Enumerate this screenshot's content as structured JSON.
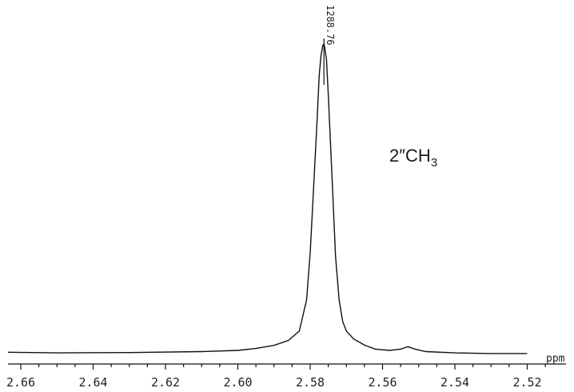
{
  "chart_data": {
    "type": "line",
    "title": "",
    "xlabel": "ppm",
    "ylabel": "",
    "x_reversed": true,
    "xlim": [
      2.67,
      2.52
    ],
    "x_ticks": [
      2.66,
      2.64,
      2.62,
      2.6,
      2.58,
      2.56,
      2.54,
      2.52
    ],
    "x_tick_labels": [
      "2.66",
      "2.64",
      "2.62",
      "2.60",
      "2.58",
      "2.56",
      "2.54",
      "2.52"
    ],
    "grid": false,
    "series": [
      {
        "x": [
          2.67,
          2.65,
          2.63,
          2.61,
          2.6,
          2.595,
          2.59,
          2.586,
          2.583,
          2.581,
          2.58,
          2.579,
          2.578,
          2.5775,
          2.577,
          2.5765,
          2.5762,
          2.576,
          2.5755,
          2.575,
          2.574,
          2.573,
          2.572,
          2.571,
          2.57,
          2.568,
          2.565,
          2.562,
          2.558,
          2.555,
          2.553,
          2.551,
          2.548,
          2.54,
          2.53,
          2.52
        ],
        "y": [
          0.012,
          0.01,
          0.011,
          0.014,
          0.018,
          0.024,
          0.034,
          0.05,
          0.08,
          0.18,
          0.33,
          0.55,
          0.78,
          0.9,
          0.965,
          0.995,
          1.0,
          0.99,
          0.95,
          0.84,
          0.58,
          0.32,
          0.18,
          0.11,
          0.08,
          0.055,
          0.035,
          0.022,
          0.018,
          0.022,
          0.03,
          0.022,
          0.014,
          0.01,
          0.008,
          0.008
        ]
      }
    ],
    "peak_label": {
      "x": 2.5762,
      "text": "1288.76"
    },
    "annotation": {
      "main": "2″CH",
      "subscript": "3"
    }
  }
}
